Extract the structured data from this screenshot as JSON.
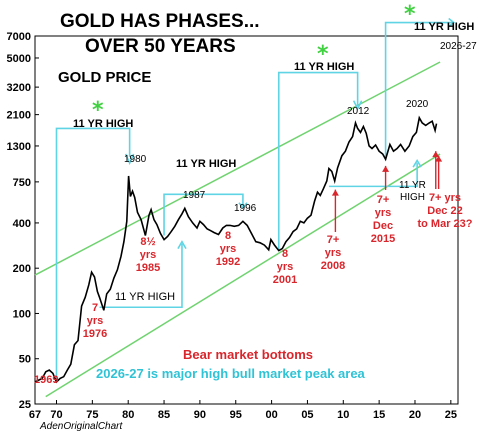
{
  "colors": {
    "price": "#000000",
    "channel": "#6fd36f",
    "bracket": "#5fd4e4",
    "bottom": "#d9262c",
    "star": "#3fd13f"
  },
  "chart_data": {
    "type": "line",
    "title_line1": "GOLD HAS PHASES...",
    "title_line2": "OVER 50 YEARS",
    "series_label": "GOLD PRICE",
    "xscale": "linear",
    "yscale": "log",
    "xlim": [
      67,
      26
    ],
    "ylim": [
      25,
      7000
    ],
    "x_ticks": [
      "67",
      "70",
      "75",
      "80",
      "85",
      "90",
      "95",
      "00",
      "05",
      "10",
      "15",
      "20",
      "25"
    ],
    "y_ticks": [
      {
        "value": 25,
        "label": "25"
      },
      {
        "value": 50,
        "label": "50"
      },
      {
        "value": 100,
        "label": "100"
      },
      {
        "value": 200,
        "label": "200"
      },
      {
        "value": 400,
        "label": "400"
      },
      {
        "value": 750,
        "label": "750"
      },
      {
        "value": 1300,
        "label": "1300"
      },
      {
        "value": 2100,
        "label": "2100"
      },
      {
        "value": 3200,
        "label": "3200"
      },
      {
        "value": 5000,
        "label": "5000"
      },
      {
        "value": 7000,
        "label": "7000"
      }
    ],
    "series": [
      {
        "points": [
          [
            1967.0,
            35
          ],
          [
            1968.0,
            37
          ],
          [
            1968.5,
            41
          ],
          [
            1969.0,
            42
          ],
          [
            1969.5,
            40
          ],
          [
            1970.0,
            35
          ],
          [
            1970.5,
            37
          ],
          [
            1971.0,
            38
          ],
          [
            1971.5,
            42
          ],
          [
            1972.0,
            46
          ],
          [
            1972.5,
            62
          ],
          [
            1973.0,
            66
          ],
          [
            1973.5,
            112
          ],
          [
            1974.0,
            128
          ],
          [
            1974.5,
            155
          ],
          [
            1974.9,
            188
          ],
          [
            1975.3,
            175
          ],
          [
            1975.7,
            140
          ],
          [
            1976.0,
            128
          ],
          [
            1976.6,
            105
          ],
          [
            1977.0,
            135
          ],
          [
            1977.5,
            145
          ],
          [
            1978.0,
            172
          ],
          [
            1978.5,
            195
          ],
          [
            1979.0,
            240
          ],
          [
            1979.4,
            300
          ],
          [
            1979.8,
            410
          ],
          [
            1980.05,
            820
          ],
          [
            1980.3,
            600
          ],
          [
            1980.6,
            650
          ],
          [
            1980.9,
            590
          ],
          [
            1981.3,
            470
          ],
          [
            1981.8,
            420
          ],
          [
            1982.4,
            330
          ],
          [
            1982.9,
            450
          ],
          [
            1983.2,
            490
          ],
          [
            1983.6,
            420
          ],
          [
            1984.0,
            390
          ],
          [
            1984.5,
            340
          ],
          [
            1985.0,
            310
          ],
          [
            1985.5,
            325
          ],
          [
            1986.0,
            350
          ],
          [
            1986.5,
            380
          ],
          [
            1987.0,
            420
          ],
          [
            1987.5,
            460
          ],
          [
            1987.9,
            500
          ],
          [
            1988.4,
            440
          ],
          [
            1989.0,
            400
          ],
          [
            1989.6,
            370
          ],
          [
            1990.0,
            410
          ],
          [
            1990.5,
            390
          ],
          [
            1991.0,
            365
          ],
          [
            1991.5,
            355
          ],
          [
            1992.0,
            345
          ],
          [
            1992.6,
            335
          ],
          [
            1993.2,
            370
          ],
          [
            1993.7,
            385
          ],
          [
            1994.2,
            385
          ],
          [
            1994.8,
            380
          ],
          [
            1995.4,
            385
          ],
          [
            1996.0,
            410
          ],
          [
            1996.6,
            385
          ],
          [
            1997.2,
            340
          ],
          [
            1997.8,
            300
          ],
          [
            1998.4,
            295
          ],
          [
            1999.0,
            285
          ],
          [
            1999.6,
            265
          ],
          [
            1999.9,
            310
          ],
          [
            2000.4,
            285
          ],
          [
            2001.0,
            262
          ],
          [
            2001.5,
            270
          ],
          [
            2002.0,
            300
          ],
          [
            2002.5,
            320
          ],
          [
            2003.0,
            350
          ],
          [
            2003.5,
            365
          ],
          [
            2004.0,
            410
          ],
          [
            2004.5,
            400
          ],
          [
            2005.0,
            430
          ],
          [
            2005.5,
            450
          ],
          [
            2006.0,
            560
          ],
          [
            2006.4,
            640
          ],
          [
            2006.8,
            610
          ],
          [
            2007.2,
            670
          ],
          [
            2007.7,
            760
          ],
          [
            2008.0,
            920
          ],
          [
            2008.4,
            880
          ],
          [
            2008.8,
            760
          ],
          [
            2009.2,
            930
          ],
          [
            2009.8,
            1120
          ],
          [
            2010.3,
            1200
          ],
          [
            2010.8,
            1380
          ],
          [
            2011.3,
            1500
          ],
          [
            2011.7,
            1850
          ],
          [
            2012.0,
            1700
          ],
          [
            2012.4,
            1600
          ],
          [
            2012.8,
            1750
          ],
          [
            2013.2,
            1580
          ],
          [
            2013.6,
            1300
          ],
          [
            2014.0,
            1250
          ],
          [
            2014.5,
            1320
          ],
          [
            2015.0,
            1200
          ],
          [
            2015.5,
            1150
          ],
          [
            2015.9,
            1060
          ],
          [
            2016.5,
            1330
          ],
          [
            2017.0,
            1200
          ],
          [
            2017.5,
            1250
          ],
          [
            2018.0,
            1330
          ],
          [
            2018.6,
            1200
          ],
          [
            2019.2,
            1300
          ],
          [
            2019.7,
            1500
          ],
          [
            2020.2,
            1600
          ],
          [
            2020.6,
            2000
          ],
          [
            2021.0,
            1850
          ],
          [
            2021.5,
            1780
          ],
          [
            2022.0,
            1850
          ],
          [
            2022.4,
            1900
          ],
          [
            2022.8,
            1650
          ],
          [
            2023.0,
            1830
          ]
        ]
      }
    ]
  },
  "phases": [
    {
      "star": "*",
      "text": "11 YR HIGH"
    },
    {
      "text": "11 YR HIGH"
    },
    {
      "text": "11 YR HIGH"
    },
    {
      "star": "*",
      "text": "11 YR HIGH"
    },
    {
      "text": "11 YR\nHIGH"
    },
    {
      "star": "*",
      "text": "11 YR HIGH"
    }
  ],
  "peaks": [
    "1980",
    "1987",
    "1996",
    "2012",
    "2020"
  ],
  "peak_label": "2026-27",
  "bottoms": [
    {
      "lines": [
        "1969"
      ]
    },
    {
      "lines": [
        "7",
        "yrs",
        "1976"
      ]
    },
    {
      "lines": [
        "8½",
        "yrs",
        "1985"
      ]
    },
    {
      "lines": [
        "8",
        "yrs",
        "1992"
      ]
    },
    {
      "lines": [
        "8",
        "yrs",
        "2001"
      ]
    },
    {
      "lines": [
        "7+",
        "yrs",
        "2008"
      ]
    },
    {
      "lines": [
        "7+",
        "yrs",
        "Dec",
        "2015"
      ]
    },
    {
      "lines": [
        "7+ yrs",
        "Dec 22",
        "to Mar 23?"
      ]
    }
  ],
  "legend": {
    "bear": "Bear market bottoms",
    "bull": "2026-27 is major high bull market peak area"
  },
  "credit": "AdenOriginalChart"
}
